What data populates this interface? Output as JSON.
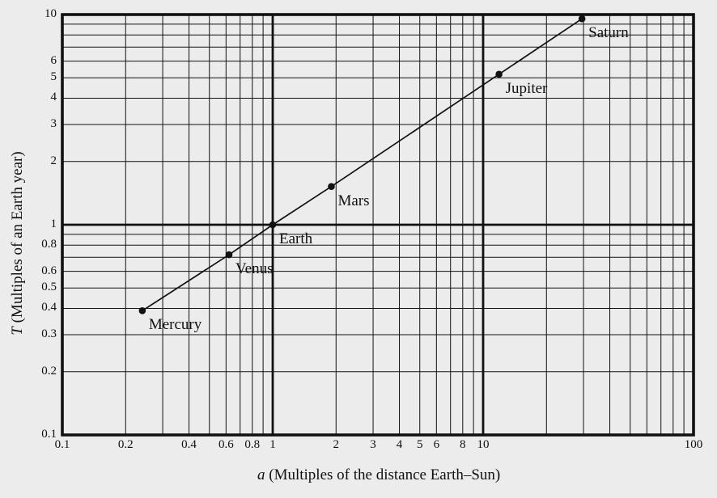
{
  "colors": {
    "background": "#ececec",
    "ink": "#111111"
  },
  "axes": {
    "x": {
      "variable": "a",
      "label_rest": " (Multiples of the distance Earth–Sun)"
    },
    "y": {
      "variable": "T",
      "label_rest": " (Multiples of an Earth year)"
    }
  },
  "chart_data": {
    "type": "scatter",
    "subtype": "log-log scatter with straight connecting line through points",
    "title": "",
    "xlabel": "a (Multiples of the distance Earth–Sun)",
    "ylabel": "T (Multiples of an Earth year)",
    "xlim": [
      0.1,
      100
    ],
    "ylim": [
      0.1,
      10
    ],
    "x_scale": "log",
    "y_scale": "log",
    "grid": {
      "on": true,
      "minor_mantissas": [
        2,
        3,
        4,
        5,
        6,
        7,
        8,
        9
      ],
      "major_decades_bold": true
    },
    "x_tick_labels": [
      {
        "v": 0.1,
        "t": "0.1"
      },
      {
        "v": 0.2,
        "t": "0.2"
      },
      {
        "v": 0.4,
        "t": "0.4"
      },
      {
        "v": 0.6,
        "t": "0.6"
      },
      {
        "v": 0.8,
        "t": "0.8"
      },
      {
        "v": 1,
        "t": "1"
      },
      {
        "v": 2,
        "t": "2"
      },
      {
        "v": 3,
        "t": "3"
      },
      {
        "v": 4,
        "t": "4"
      },
      {
        "v": 5,
        "t": "5"
      },
      {
        "v": 6,
        "t": "6"
      },
      {
        "v": 8,
        "t": "8"
      },
      {
        "v": 10,
        "t": "10"
      },
      {
        "v": 100,
        "t": "100"
      }
    ],
    "y_tick_labels": [
      {
        "v": 0.1,
        "t": "0.1"
      },
      {
        "v": 0.2,
        "t": "0.2"
      },
      {
        "v": 0.3,
        "t": "0.3"
      },
      {
        "v": 0.4,
        "t": "0.4"
      },
      {
        "v": 0.5,
        "t": "0.5"
      },
      {
        "v": 0.6,
        "t": "0.6"
      },
      {
        "v": 0.8,
        "t": "0.8"
      },
      {
        "v": 1,
        "t": "1"
      },
      {
        "v": 2,
        "t": "2"
      },
      {
        "v": 3,
        "t": "3"
      },
      {
        "v": 4,
        "t": "4"
      },
      {
        "v": 5,
        "t": "5"
      },
      {
        "v": 6,
        "t": "6"
      },
      {
        "v": 10,
        "t": "10"
      }
    ],
    "series": [
      {
        "name": "planets",
        "marker": "filled-circle",
        "line_through_points": true,
        "points": [
          {
            "label": "Mercury",
            "x": 0.24,
            "y": 0.39
          },
          {
            "label": "Venus",
            "x": 0.62,
            "y": 0.72
          },
          {
            "label": "Earth",
            "x": 1.0,
            "y": 1.0
          },
          {
            "label": "Mars",
            "x": 1.9,
            "y": 1.52
          },
          {
            "label": "Jupiter",
            "x": 11.9,
            "y": 5.2
          },
          {
            "label": "Saturn",
            "x": 29.5,
            "y": 9.55
          }
        ]
      }
    ]
  }
}
